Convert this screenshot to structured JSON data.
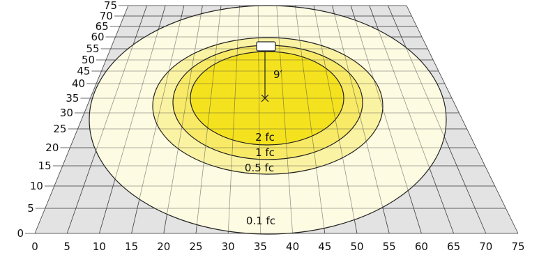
{
  "x_ticks": [
    "0",
    "5",
    "10",
    "15",
    "20",
    "25",
    "30",
    "35",
    "40",
    "45",
    "50",
    "55",
    "60",
    "65",
    "70",
    "75"
  ],
  "y_ticks": [
    "0",
    "5",
    "10",
    "15",
    "20",
    "25",
    "30",
    "35",
    "40",
    "45",
    "50",
    "55",
    "60",
    "65",
    "70",
    "75"
  ],
  "mounting_height_label": "9′",
  "contours": [
    {
      "label": "0.1 fc",
      "color": "#fdfbe2"
    },
    {
      "label": "0.5 fc",
      "color": "#fbf3a4"
    },
    {
      "label": "1 fc",
      "color": "#f8ea66"
    },
    {
      "label": "2 fc",
      "color": "#f5e21e"
    }
  ],
  "colors": {
    "floor": "#e3e3e3",
    "grid": "#444444",
    "outline": "#222222"
  },
  "icons": {
    "fixture": "light-fixture-icon",
    "center": "center-point-x-icon"
  }
}
